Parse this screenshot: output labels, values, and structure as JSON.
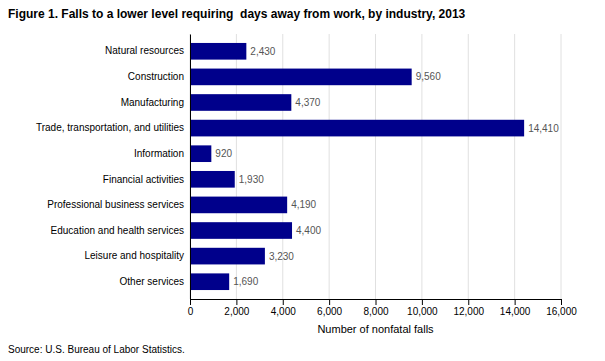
{
  "chart_data": {
    "type": "bar",
    "orientation": "horizontal",
    "title": "Figure 1. Falls to a lower level requiring  days away from work, by industry, 2013",
    "categories": [
      "Other services",
      "Leisure and hospitality",
      "Education and health services",
      "Professional business services",
      "Financial activities",
      "Information",
      "Trade, transportation, and utilities",
      "Manufacturing",
      "Construction",
      "Natural resources"
    ],
    "values": [
      1690,
      3230,
      4400,
      4190,
      1930,
      920,
      14410,
      4370,
      9560,
      2430
    ],
    "value_labels": [
      "1,690",
      "3,230",
      "4,400",
      "4,190",
      "1,930",
      "920",
      "14,410",
      "4,370",
      "9,560",
      "2,430"
    ],
    "data_labels": true,
    "color": "#00008B",
    "xlabel": "Number of nonfatal falls",
    "source": "Source: U.S. Bureau of Labor Statistics.",
    "xlim": [
      0,
      16000
    ],
    "xticks": [
      0,
      {
        "value": 2000,
        "label": "2,000"
      },
      {
        "value": 4000,
        "label": "4,000"
      },
      {
        "value": 6000,
        "label": "6,000"
      },
      {
        "value": 8000,
        "label": "8,000"
      },
      {
        "value": 10000,
        "label": "10,000"
      },
      {
        "value": 12000,
        "label": "12,000"
      },
      {
        "value": 14000,
        "label": "14,000"
      },
      {
        "value": 16000,
        "label": "16,000"
      }
    ],
    "grid": true
  }
}
